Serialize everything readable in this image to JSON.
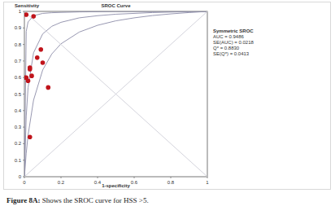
{
  "chart_data": {
    "type": "scatter",
    "title": "SROC Curve",
    "y_label": "Sensitivity",
    "x_label": "1-specificity",
    "xlim": [
      0,
      1
    ],
    "ylim": [
      0,
      1
    ],
    "xticks": [
      0,
      0.2,
      0.4,
      0.6,
      0.8,
      1
    ],
    "yticks": [
      0,
      0.1,
      0.2,
      0.3,
      0.4,
      0.5,
      0.6,
      0.7,
      0.8,
      0.9,
      1
    ],
    "grid": false,
    "annotations": [
      "Symmetric SROC",
      "AUC = 0.9486",
      "SE(AUC) = 0.0218",
      "Q* = 0.8830",
      "SE(Q*) = 0.0413"
    ],
    "series": [
      {
        "type": "scatter",
        "color": "#c0141b",
        "marker": "circle",
        "x": [
          0.01,
          0.05,
          0.09,
          0.07,
          0.1,
          0.03,
          0.03,
          0.0,
          0.01,
          0.04,
          0.02,
          0.13,
          0.03
        ],
        "values": [
          0.98,
          0.97,
          0.77,
          0.72,
          0.69,
          0.66,
          0.65,
          0.6,
          0.6,
          0.61,
          0.58,
          0.54,
          0.24
        ]
      },
      {
        "type": "line",
        "color": "#8c8ca8",
        "line_style": "solid",
        "x": [
          0,
          0.01,
          0.02,
          0.05,
          0.1,
          0.15,
          0.2,
          0.3,
          0.4,
          0.5,
          0.6,
          0.7,
          0.8,
          0.9,
          1
        ],
        "values": [
          0,
          0.365,
          0.538,
          0.75,
          0.864,
          0.91,
          0.934,
          0.961,
          0.974,
          0.983,
          0.988,
          0.993,
          0.996,
          0.998,
          1
        ]
      },
      {
        "type": "line",
        "color": "#8c8ca8",
        "line_style": "solid",
        "x": [
          0,
          0.01,
          0.02,
          0.05,
          0.1,
          0.15,
          0.2,
          0.3,
          0.4,
          0.5,
          0.6,
          0.7,
          0.8,
          0.9,
          1
        ],
        "values": [
          0,
          0.879,
          0.936,
          0.974,
          0.988,
          0.992,
          0.994,
          0.997,
          0.998,
          0.999,
          0.999,
          0.999,
          1,
          1,
          1
        ]
      },
      {
        "type": "line",
        "color": "#8c8ca8",
        "line_style": "solid",
        "x": [
          0,
          0.01,
          0.02,
          0.05,
          0.1,
          0.15,
          0.2,
          0.3,
          0.4,
          0.5,
          0.6,
          0.7,
          0.8,
          0.9,
          1
        ],
        "values": [
          0,
          0.142,
          0.251,
          0.463,
          0.646,
          0.743,
          0.804,
          0.875,
          0.916,
          0.943,
          0.961,
          0.975,
          0.985,
          0.993,
          1
        ]
      },
      {
        "type": "line",
        "color": "#cfcfd8",
        "line_style": "solid",
        "x": [
          0,
          1
        ],
        "values": [
          0,
          1
        ]
      },
      {
        "type": "line",
        "color": "#cfcfd8",
        "line_style": "solid",
        "x": [
          0,
          1
        ],
        "values": [
          1,
          0
        ]
      }
    ]
  },
  "figure_caption": {
    "label": "Figure 8A:",
    "text": "Shows the SROC curve for HSS >5."
  }
}
